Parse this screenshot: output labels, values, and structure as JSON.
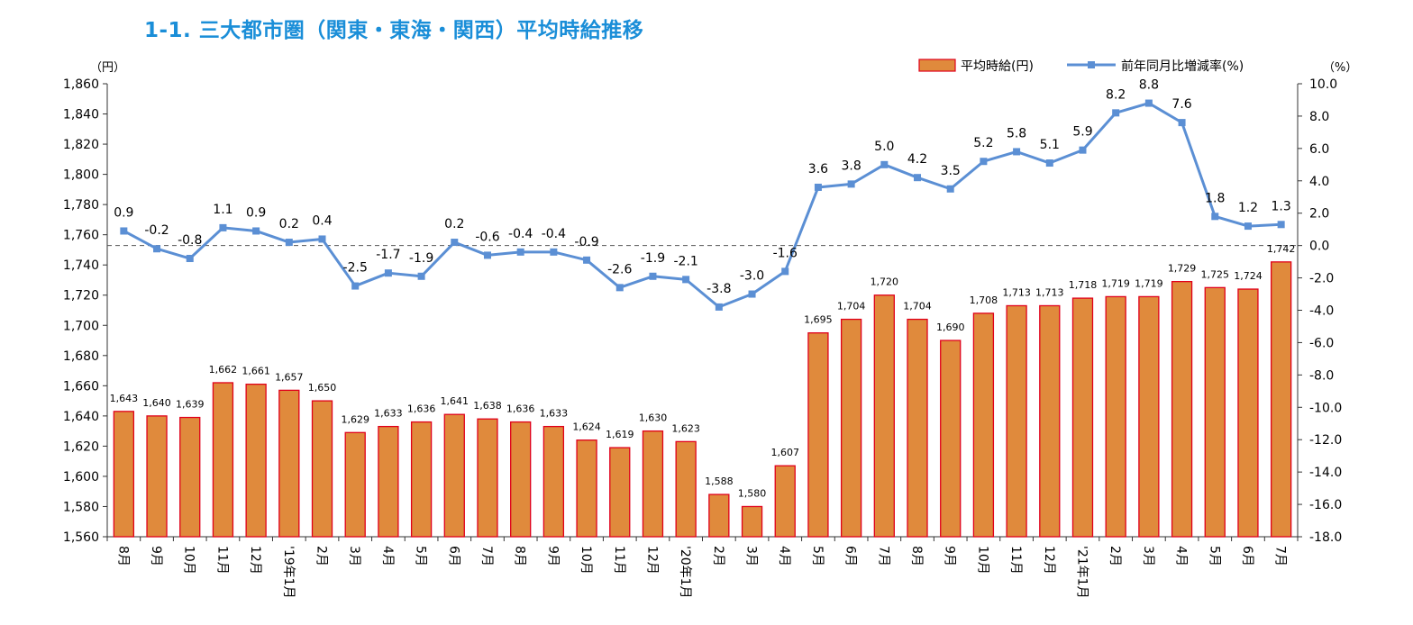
{
  "title": "1-1. 三大都市圏（関東・東海・関西）平均時給推移",
  "chart_data": {
    "type": "bar+line",
    "left_unit": "（円）",
    "right_unit": "（%）",
    "legend": [
      {
        "name": "平均時給(円)",
        "kind": "bar",
        "position": "top-right"
      },
      {
        "name": "前年同月比増減率(%)",
        "kind": "line",
        "position": "top-right"
      }
    ],
    "colors": {
      "bar_fill": "#e08a3c",
      "bar_stroke": "#e0001a",
      "line": "#5b8fd4",
      "zero_line": "#555555",
      "title": "#1a8ed8"
    },
    "grid": false,
    "y_left": {
      "min": 1560,
      "max": 1860,
      "step": 20,
      "tick_labels": [
        "1,560",
        "1,580",
        "1,600",
        "1,620",
        "1,640",
        "1,660",
        "1,680",
        "1,700",
        "1,720",
        "1,740",
        "1,760",
        "1,780",
        "1,800",
        "1,820",
        "1,840",
        "1,860"
      ]
    },
    "y_right": {
      "min": -18.0,
      "max": 10.0,
      "step": 2,
      "tick_labels": [
        "-18.0",
        "-16.0",
        "-14.0",
        "-12.0",
        "-10.0",
        "-8.0",
        "-6.0",
        "-4.0",
        "-2.0",
        "0.0",
        "2.0",
        "4.0",
        "6.0",
        "8.0",
        "10.0"
      ]
    },
    "categories": [
      "8月",
      "9月",
      "10月",
      "11月",
      "12月",
      "'19年1月",
      "2月",
      "3月",
      "4月",
      "5月",
      "6月",
      "7月",
      "8月",
      "9月",
      "10月",
      "11月",
      "12月",
      "'20年1月",
      "2月",
      "3月",
      "4月",
      "5月",
      "6月",
      "7月",
      "8月",
      "9月",
      "10月",
      "11月",
      "12月",
      "'21年1月",
      "2月",
      "3月",
      "4月",
      "5月",
      "6月",
      "7月"
    ],
    "series": [
      {
        "name": "平均時給(円)",
        "axis": "left",
        "type": "bar",
        "values": [
          1643,
          1640,
          1639,
          1662,
          1661,
          1657,
          1650,
          1629,
          1633,
          1636,
          1641,
          1638,
          1636,
          1633,
          1624,
          1619,
          1630,
          1623,
          1588,
          1580,
          1607,
          1695,
          1704,
          1720,
          1704,
          1690,
          1708,
          1713,
          1713,
          1718,
          1719,
          1719,
          1729,
          1725,
          1724,
          1742
        ],
        "labels": [
          "1,643",
          "1,640",
          "1,639",
          "1,662",
          "1,661",
          "1,657",
          "1,650",
          "1,629",
          "1,633",
          "1,636",
          "1,641",
          "1,638",
          "1,636",
          "1,633",
          "1,624",
          "1,619",
          "1,630",
          "1,623",
          "1,588",
          "1,580",
          "1,607",
          "1,695",
          "1,704",
          "1,720",
          "1,704",
          "1,690",
          "1,708",
          "1,713",
          "1,713",
          "1,718",
          "1,719",
          "1,719",
          "1,729",
          "1,725",
          "1,724",
          "1,742"
        ]
      },
      {
        "name": "前年同月比増減率(%)",
        "axis": "right",
        "type": "line",
        "values": [
          0.9,
          -0.2,
          -0.8,
          1.1,
          0.9,
          0.2,
          0.4,
          -2.5,
          -1.7,
          -1.9,
          0.2,
          -0.6,
          -0.4,
          -0.4,
          -0.9,
          -2.6,
          -1.9,
          -2.1,
          -3.8,
          -3.0,
          -1.6,
          3.6,
          3.8,
          5.0,
          4.2,
          3.5,
          5.2,
          5.8,
          5.1,
          5.9,
          8.2,
          8.8,
          7.6,
          1.8,
          1.2,
          1.3
        ],
        "labels": [
          "0.9",
          "-0.2",
          "-0.8",
          "1.1",
          "0.9",
          "0.2",
          "0.4",
          "-2.5",
          "-1.7",
          "-1.9",
          "0.2",
          "-0.6",
          "-0.4",
          "-0.4",
          "-0.9",
          "-2.6",
          "-1.9",
          "-2.1",
          "-3.8",
          "-3.0",
          "-1.6",
          "3.6",
          "3.8",
          "5.0",
          "4.2",
          "3.5",
          "5.2",
          "5.8",
          "5.1",
          "5.9",
          "8.2",
          "8.8",
          "7.6",
          "1.8",
          "1.2",
          "1.3"
        ]
      }
    ]
  }
}
